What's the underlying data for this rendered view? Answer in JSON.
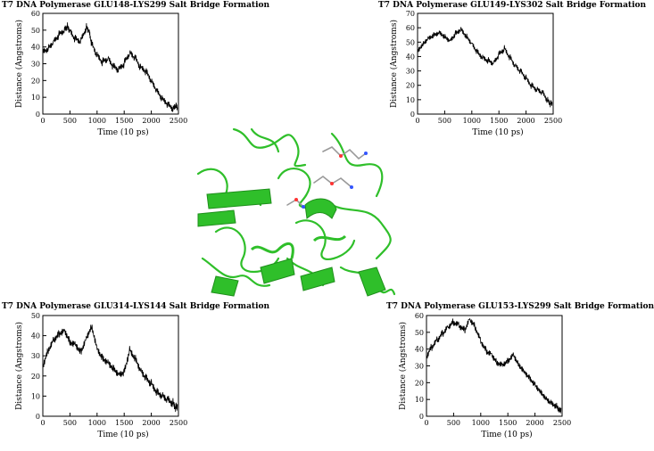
{
  "charts": [
    {
      "type": "line",
      "title": "T7  DNA  Polymerase  GLU148-LYS299  Salt  Bridge  Formation",
      "xlabel": "Time  (10  ps)",
      "ylabel": "Distance  (Angstroms)",
      "xlim": [
        0,
        2500
      ],
      "ylim": [
        0,
        60
      ],
      "xticks": [
        0,
        500,
        1000,
        1500,
        2000,
        2500
      ],
      "yticks": [
        0,
        10,
        20,
        30,
        40,
        50,
        60
      ],
      "grid": false,
      "series": [
        {
          "color": "#000000",
          "x": [
            0,
            100,
            200,
            300,
            400,
            450,
            500,
            600,
            700,
            800,
            850,
            900,
            1000,
            1100,
            1200,
            1300,
            1400,
            1500,
            1600,
            1700,
            1800,
            1900,
            2000,
            2100,
            2200,
            2300,
            2400,
            2450,
            2480
          ],
          "y": [
            38,
            40,
            44,
            48,
            51,
            53,
            50,
            45,
            44,
            52,
            50,
            42,
            35,
            31,
            33,
            28,
            26,
            30,
            36,
            33,
            27,
            25,
            19,
            13,
            8,
            5,
            2,
            4,
            3
          ]
        }
      ]
    },
    {
      "type": "line",
      "title": "T7  DNA  Polymerase  GLU149-LYS302  Salt  Bridge  Formation",
      "xlabel": "Time  (10  ps)",
      "ylabel": "Distance  (Angstroms)",
      "xlim": [
        0,
        2500
      ],
      "ylim": [
        0,
        70
      ],
      "xticks": [
        0,
        500,
        1000,
        1500,
        2000,
        2500
      ],
      "yticks": [
        0,
        10,
        20,
        30,
        40,
        50,
        60,
        70
      ],
      "grid": false,
      "series": [
        {
          "color": "#000000",
          "x": [
            0,
            100,
            200,
            300,
            400,
            500,
            600,
            700,
            800,
            900,
            1000,
            1100,
            1200,
            1300,
            1400,
            1500,
            1600,
            1700,
            1800,
            1900,
            2000,
            2100,
            2200,
            2300,
            2400,
            2450,
            2480
          ],
          "y": [
            45,
            50,
            54,
            56,
            58,
            55,
            52,
            57,
            60,
            55,
            50,
            44,
            40,
            38,
            36,
            42,
            46,
            40,
            34,
            30,
            25,
            20,
            17,
            15,
            9,
            7,
            8
          ]
        }
      ]
    },
    {
      "type": "line",
      "title": "T7  DNA  Polymerase  GLU314-LYS144  Salt  Bridge  Formation",
      "xlabel": "Time  (10  ps)",
      "ylabel": "Distance  (Angstroms)",
      "xlim": [
        0,
        2500
      ],
      "ylim": [
        0,
        50
      ],
      "xticks": [
        0,
        500,
        1000,
        1500,
        2000,
        2500
      ],
      "yticks": [
        0,
        10,
        20,
        30,
        40,
        50
      ],
      "grid": false,
      "series": [
        {
          "color": "#000000",
          "x": [
            0,
            100,
            200,
            300,
            400,
            500,
            600,
            700,
            800,
            900,
            1000,
            1100,
            1200,
            1300,
            1400,
            1500,
            1600,
            1700,
            1800,
            1900,
            2000,
            2100,
            2200,
            2300,
            2400,
            2450,
            2480
          ],
          "y": [
            26,
            34,
            39,
            42,
            44,
            38,
            37,
            33,
            40,
            46,
            35,
            30,
            28,
            25,
            22,
            23,
            34,
            30,
            24,
            20,
            17,
            13,
            11,
            9,
            7,
            5,
            6
          ]
        }
      ]
    },
    {
      "type": "line",
      "title": "T7  DNA  Polymerase  GLU153-LYS299  Salt  Bridge  Formation",
      "xlabel": "Time  (10  ps)",
      "ylabel": "Distance  (Angstroms)",
      "xlim": [
        0,
        2500
      ],
      "ylim": [
        0,
        60
      ],
      "xticks": [
        0,
        500,
        1000,
        1500,
        2000,
        2500
      ],
      "yticks": [
        0,
        10,
        20,
        30,
        40,
        50,
        60
      ],
      "grid": false,
      "series": [
        {
          "color": "#000000",
          "x": [
            0,
            100,
            200,
            300,
            400,
            500,
            600,
            700,
            800,
            900,
            1000,
            1100,
            1200,
            1300,
            1400,
            1500,
            1600,
            1700,
            1800,
            1900,
            2000,
            2100,
            2200,
            2300,
            2400,
            2450,
            2480
          ],
          "y": [
            36,
            42,
            46,
            50,
            54,
            57,
            55,
            52,
            59,
            54,
            46,
            40,
            38,
            33,
            32,
            34,
            38,
            32,
            28,
            24,
            20,
            16,
            12,
            9,
            7,
            5,
            5
          ]
        }
      ]
    }
  ],
  "colors": {
    "line": "#000000",
    "protein": "#2fbf2a",
    "protein_dark": "#1f8f1c",
    "axis": "#000000"
  }
}
